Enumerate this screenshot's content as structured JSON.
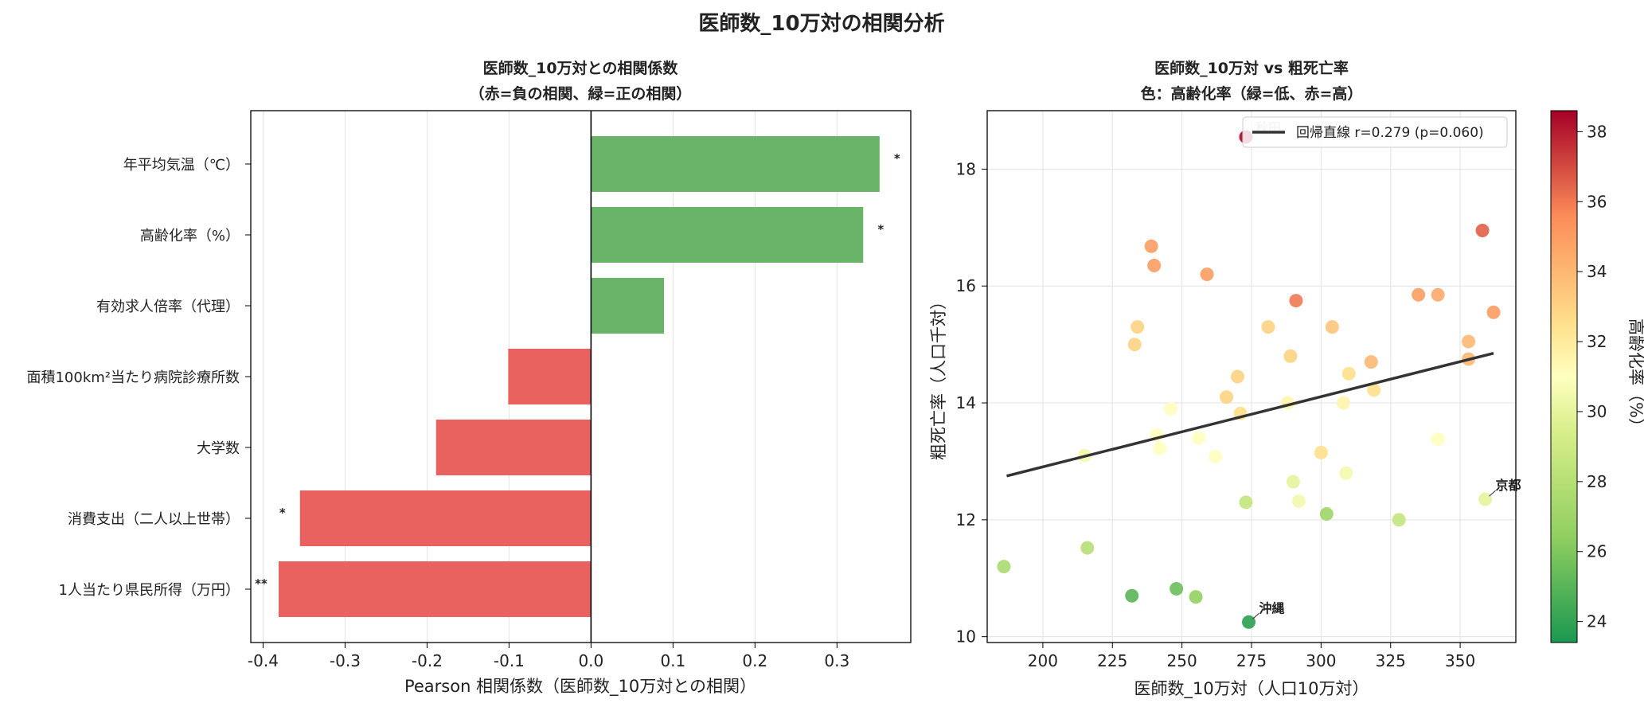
{
  "figure": {
    "title": "医師数_10万対の相関分析"
  },
  "colors": {
    "positive_bar": "#6ab46a",
    "negative_bar": "#ea6260",
    "regression_line": "#333333",
    "colormap": "RdYlGn_r"
  },
  "chart_data": [
    {
      "type": "bar",
      "orientation": "horizontal",
      "title": "医師数_10万対との相関係数",
      "subtitle": "（赤=負の相関、緑=正の相関）",
      "xlabel": "Pearson 相関係数（医師数_10万対との相関）",
      "ylabel": "",
      "xlim": [
        -0.415,
        0.39
      ],
      "xticks": [
        -0.4,
        -0.3,
        -0.2,
        -0.1,
        0.0,
        0.1,
        0.2,
        0.3
      ],
      "xtick_labels": [
        "-0.4",
        "-0.3",
        "-0.2",
        "-0.1",
        "0.0",
        "0.1",
        "0.2",
        "0.3"
      ],
      "grid": "x",
      "categories": [
        "年平均気温（℃）",
        "高齢化率（%）",
        "有効求人倍率（代理）",
        "面積100km²当たり病院診療所数",
        "大学数",
        "消費支出（二人以上世帯）",
        "1人当たり県民所得（万円）"
      ],
      "values": [
        0.352,
        0.332,
        0.089,
        -0.101,
        -0.189,
        -0.355,
        -0.381
      ],
      "significance": [
        "*",
        "*",
        "",
        "",
        "",
        "*",
        "**"
      ]
    },
    {
      "type": "scatter",
      "title": "医師数_10万対 vs 粗死亡率",
      "subtitle": "色：高齢化率（緑=低、赤=高）",
      "xlabel": "医師数_10万対（人口10万対）",
      "ylabel": "粗死亡率（人口千対）",
      "xlim": [
        180,
        370
      ],
      "ylim": [
        9.9,
        19.0
      ],
      "xticks": [
        200,
        225,
        250,
        275,
        300,
        325,
        350
      ],
      "yticks": [
        10,
        12,
        14,
        16,
        18
      ],
      "grid": true,
      "colorbar": {
        "label": "高齢化率（%）",
        "range": [
          23.4,
          38.6
        ],
        "ticks": [
          24,
          26,
          28,
          30,
          32,
          34,
          36,
          38
        ]
      },
      "legend": {
        "placement": "top-right",
        "label": "回帰直線 r=0.279 (p=0.060)"
      },
      "regression": {
        "x": [
          187,
          362
        ],
        "y": [
          12.75,
          14.85
        ]
      },
      "annotations": [
        {
          "label": "秋田",
          "x": 273,
          "y": 18.55
        },
        {
          "label": "京都",
          "x": 359,
          "y": 12.35
        },
        {
          "label": "沖縄",
          "x": 274,
          "y": 10.25
        }
      ],
      "points": [
        {
          "x": 273,
          "y": 18.55,
          "c": 38.5
        },
        {
          "x": 358,
          "y": 16.95,
          "c": 36.5
        },
        {
          "x": 239,
          "y": 16.68,
          "c": 35.0
        },
        {
          "x": 240,
          "y": 16.35,
          "c": 35.0
        },
        {
          "x": 259,
          "y": 16.2,
          "c": 35.0
        },
        {
          "x": 291,
          "y": 15.75,
          "c": 36.0
        },
        {
          "x": 335,
          "y": 15.85,
          "c": 35.0
        },
        {
          "x": 342,
          "y": 15.85,
          "c": 34.5
        },
        {
          "x": 362,
          "y": 15.55,
          "c": 35.0
        },
        {
          "x": 234,
          "y": 15.3,
          "c": 33.0
        },
        {
          "x": 233,
          "y": 15.0,
          "c": 33.0
        },
        {
          "x": 281,
          "y": 15.3,
          "c": 33.0
        },
        {
          "x": 304,
          "y": 15.3,
          "c": 33.5
        },
        {
          "x": 353,
          "y": 15.05,
          "c": 34.0
        },
        {
          "x": 289,
          "y": 14.8,
          "c": 33.0
        },
        {
          "x": 318,
          "y": 14.7,
          "c": 34.0
        },
        {
          "x": 353,
          "y": 14.75,
          "c": 34.0
        },
        {
          "x": 270,
          "y": 14.45,
          "c": 33.0
        },
        {
          "x": 310,
          "y": 14.5,
          "c": 32.5
        },
        {
          "x": 319,
          "y": 14.22,
          "c": 32.5
        },
        {
          "x": 266,
          "y": 14.1,
          "c": 33.0
        },
        {
          "x": 246,
          "y": 13.9,
          "c": 31.0
        },
        {
          "x": 271,
          "y": 13.82,
          "c": 32.5
        },
        {
          "x": 288,
          "y": 14.0,
          "c": 31.5
        },
        {
          "x": 308,
          "y": 14.0,
          "c": 31.5
        },
        {
          "x": 241,
          "y": 13.45,
          "c": 31.0
        },
        {
          "x": 256,
          "y": 13.4,
          "c": 31.0
        },
        {
          "x": 342,
          "y": 13.38,
          "c": 31.0
        },
        {
          "x": 242,
          "y": 13.22,
          "c": 31.0
        },
        {
          "x": 215,
          "y": 13.1,
          "c": 30.5
        },
        {
          "x": 262,
          "y": 13.08,
          "c": 31.0
        },
        {
          "x": 300,
          "y": 13.15,
          "c": 32.5
        },
        {
          "x": 309,
          "y": 12.8,
          "c": 30.5
        },
        {
          "x": 290,
          "y": 12.65,
          "c": 30.0
        },
        {
          "x": 292,
          "y": 12.32,
          "c": 30.5
        },
        {
          "x": 359,
          "y": 12.35,
          "c": 30.0
        },
        {
          "x": 273,
          "y": 12.3,
          "c": 28.5
        },
        {
          "x": 302,
          "y": 12.1,
          "c": 27.0
        },
        {
          "x": 328,
          "y": 12.0,
          "c": 28.5
        },
        {
          "x": 216,
          "y": 11.52,
          "c": 28.0
        },
        {
          "x": 186,
          "y": 11.2,
          "c": 27.5
        },
        {
          "x": 232,
          "y": 10.7,
          "c": 25.0
        },
        {
          "x": 248,
          "y": 10.82,
          "c": 25.5
        },
        {
          "x": 255,
          "y": 10.68,
          "c": 26.5
        },
        {
          "x": 274,
          "y": 10.25,
          "c": 23.8
        }
      ]
    }
  ]
}
